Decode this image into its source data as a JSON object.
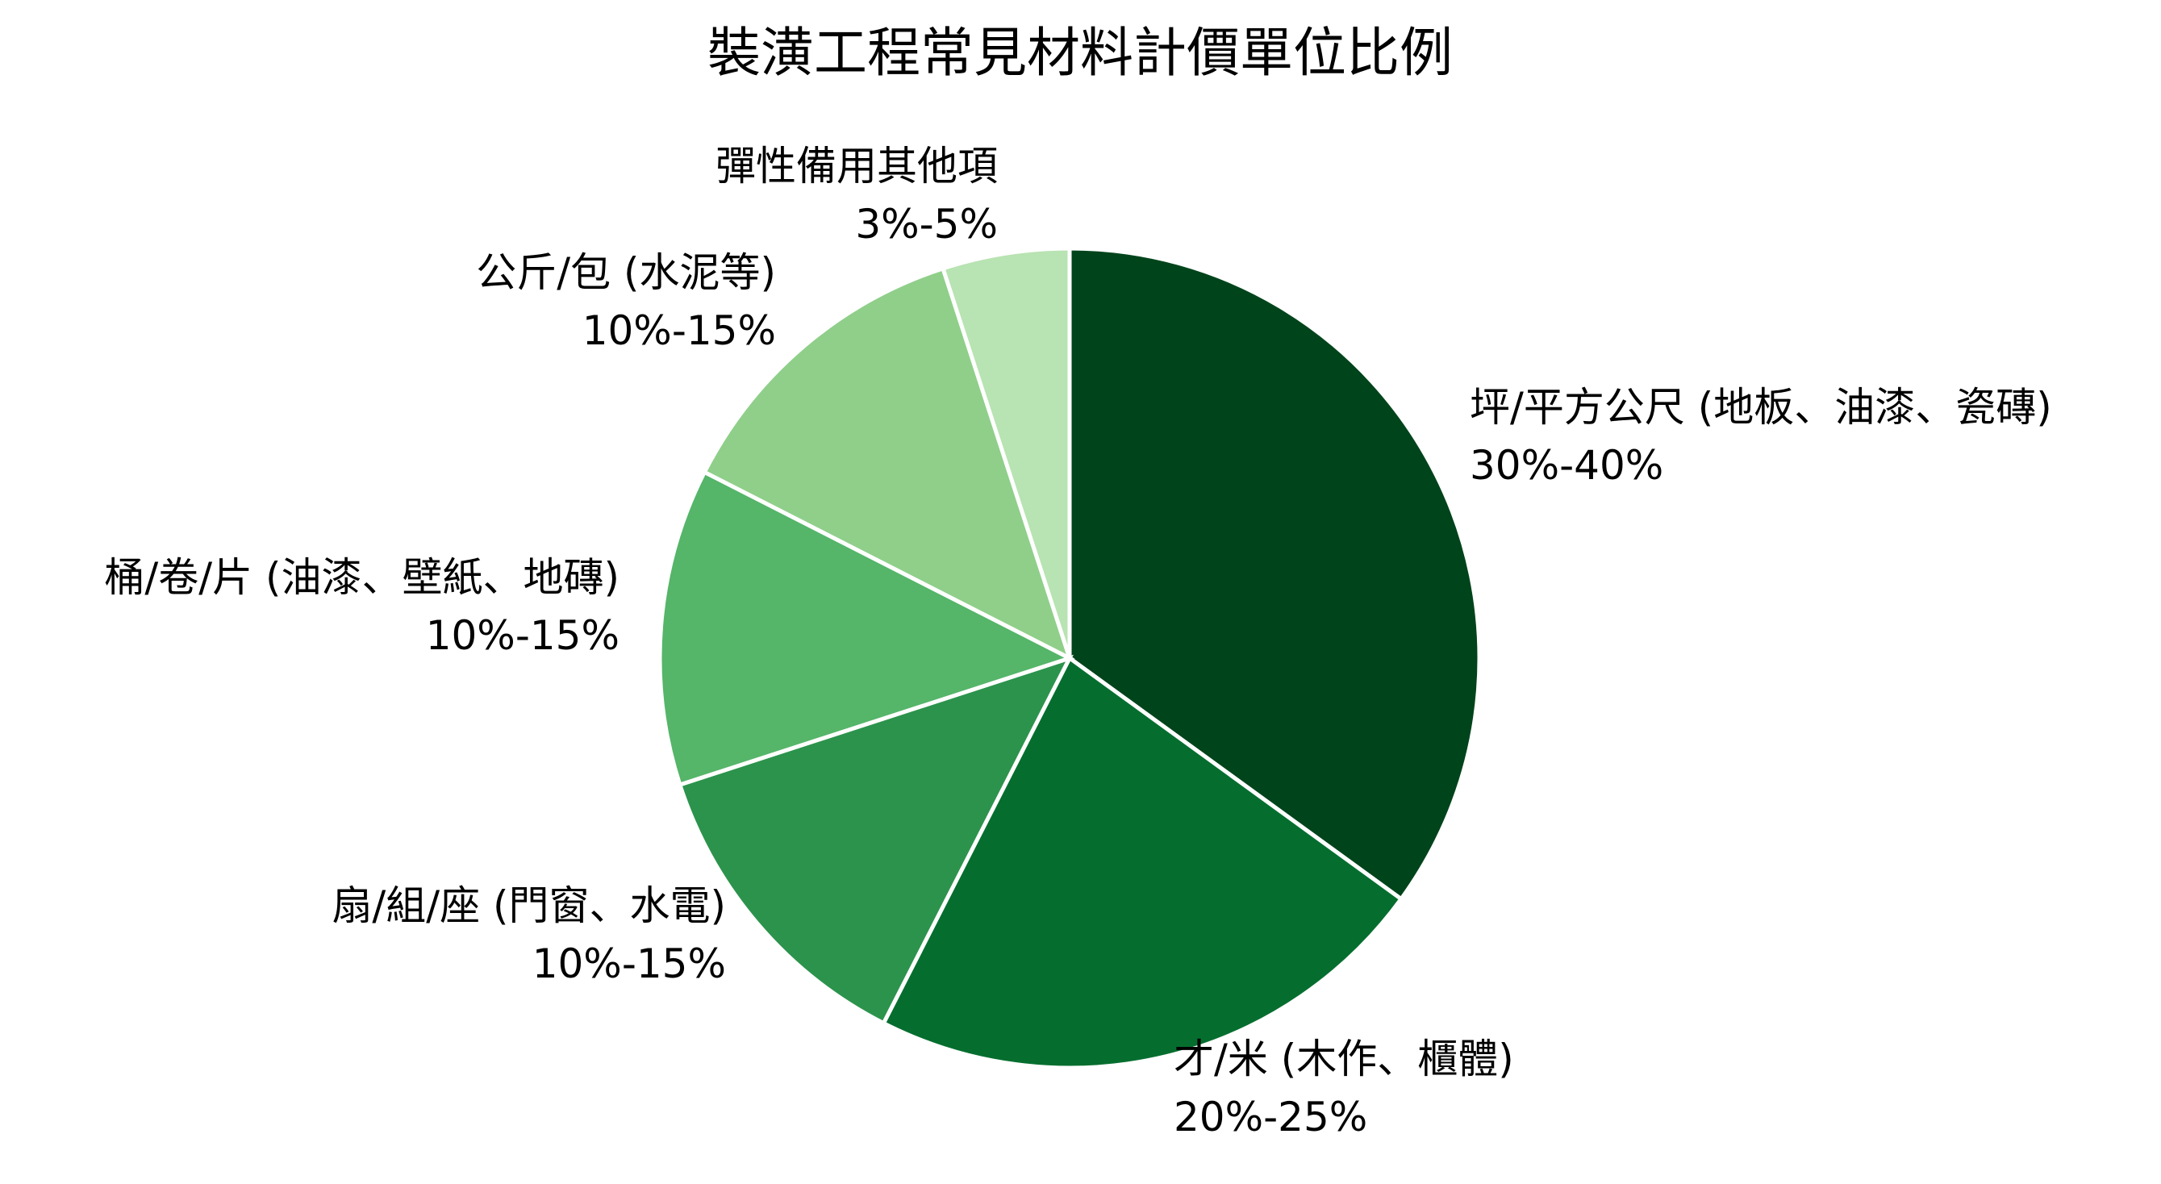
{
  "chart_data": {
    "type": "pie",
    "title": "裝潢工程常見材料計價單位比例",
    "start": "top",
    "direction": "clockwise",
    "slices": [
      {
        "label": "坪/平方公尺 (地板、油漆、瓷磚)",
        "range": "30%-40%",
        "value": 35,
        "color": "#00441b"
      },
      {
        "label": "才/米 (木作、櫃體)",
        "range": "20%-25%",
        "value": 22.5,
        "color": "#056e2f"
      },
      {
        "label": "扇/組/座 (門窗、水電)",
        "range": "10%-15%",
        "value": 12.5,
        "color": "#2c934c"
      },
      {
        "label": "桶/卷/片 (油漆、壁紙、地磚)",
        "range": "10%-15%",
        "value": 12.5,
        "color": "#55b569"
      },
      {
        "label": "公斤/包 (水泥等)",
        "range": "10%-15%",
        "value": 12.5,
        "color": "#8fcf8a"
      },
      {
        "label": "彈性備用其他項",
        "range": "3%-5%",
        "value": 5,
        "color": "#b8e3b2"
      }
    ]
  }
}
